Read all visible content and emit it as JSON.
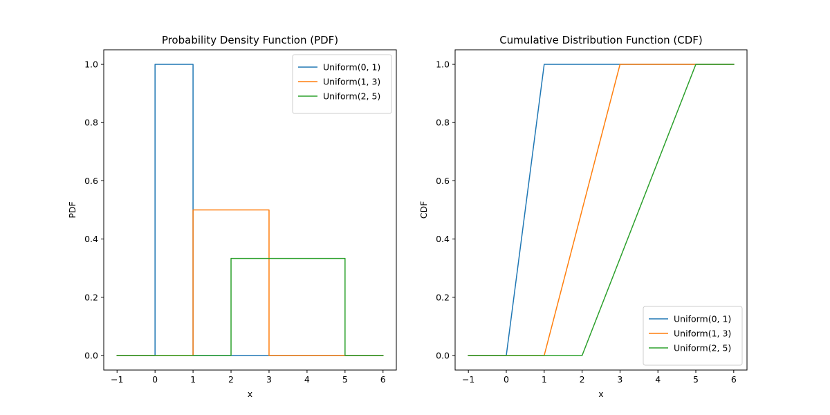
{
  "chart_data": [
    {
      "type": "line",
      "title": "Probability Density Function (PDF)",
      "xlabel": "x",
      "ylabel": "PDF",
      "xlim": [
        -1.35,
        6.35
      ],
      "ylim": [
        -0.05,
        1.05
      ],
      "xticks": [
        -1,
        0,
        1,
        2,
        3,
        4,
        5,
        6
      ],
      "yticks": [
        0.0,
        0.2,
        0.4,
        0.6,
        0.8,
        1.0
      ],
      "xtick_labels": [
        "−1",
        "0",
        "1",
        "2",
        "3",
        "4",
        "5",
        "6"
      ],
      "ytick_labels": [
        "0.0",
        "0.2",
        "0.4",
        "0.6",
        "0.8",
        "1.0"
      ],
      "legend_position": "upper right",
      "series": [
        {
          "name": "Uniform(0, 1)",
          "color": "#1f77b4",
          "points": [
            [
              -1,
              0
            ],
            [
              0,
              0
            ],
            [
              0,
              1
            ],
            [
              1,
              1
            ],
            [
              1,
              0
            ],
            [
              6,
              0
            ]
          ]
        },
        {
          "name": "Uniform(1, 3)",
          "color": "#ff7f0e",
          "points": [
            [
              -1,
              0
            ],
            [
              1,
              0
            ],
            [
              1,
              0.5
            ],
            [
              3,
              0.5
            ],
            [
              3,
              0
            ],
            [
              6,
              0
            ]
          ]
        },
        {
          "name": "Uniform(2, 5)",
          "color": "#2ca02c",
          "points": [
            [
              -1,
              0
            ],
            [
              2,
              0
            ],
            [
              2,
              0.3333
            ],
            [
              5,
              0.3333
            ],
            [
              5,
              0
            ],
            [
              6,
              0
            ]
          ]
        }
      ]
    },
    {
      "type": "line",
      "title": "Cumulative Distribution Function (CDF)",
      "xlabel": "x",
      "ylabel": "CDF",
      "xlim": [
        -1.35,
        6.35
      ],
      "ylim": [
        -0.05,
        1.05
      ],
      "xticks": [
        -1,
        0,
        1,
        2,
        3,
        4,
        5,
        6
      ],
      "yticks": [
        0.0,
        0.2,
        0.4,
        0.6,
        0.8,
        1.0
      ],
      "xtick_labels": [
        "−1",
        "0",
        "1",
        "2",
        "3",
        "4",
        "5",
        "6"
      ],
      "ytick_labels": [
        "0.0",
        "0.2",
        "0.4",
        "0.6",
        "0.8",
        "1.0"
      ],
      "legend_position": "lower right",
      "series": [
        {
          "name": "Uniform(0, 1)",
          "color": "#1f77b4",
          "points": [
            [
              -1,
              0
            ],
            [
              0,
              0
            ],
            [
              1,
              1
            ],
            [
              6,
              1
            ]
          ]
        },
        {
          "name": "Uniform(1, 3)",
          "color": "#ff7f0e",
          "points": [
            [
              -1,
              0
            ],
            [
              1,
              0
            ],
            [
              3,
              1
            ],
            [
              6,
              1
            ]
          ]
        },
        {
          "name": "Uniform(2, 5)",
          "color": "#2ca02c",
          "points": [
            [
              -1,
              0
            ],
            [
              2,
              0
            ],
            [
              5,
              1
            ],
            [
              6,
              1
            ]
          ]
        }
      ]
    }
  ]
}
